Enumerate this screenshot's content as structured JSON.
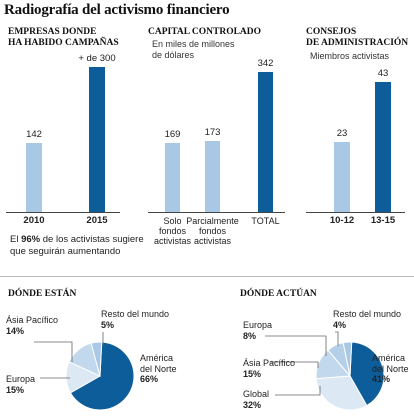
{
  "title": "Radiografía del activismo financiero",
  "panels": [
    {
      "title": "Empresas donde\nha habido campañas",
      "subtitle": ""
    },
    {
      "title": "Capital controlado",
      "subtitle": "En miles de millones\nde dólares"
    },
    {
      "title": "Consejos\nde administración",
      "subtitle": "Miembros activistas"
    }
  ],
  "note": {
    "prefix": "El ",
    "bold": "96%",
    "rest": " de los activistas sugiere que seguirán aumentando"
  },
  "chart_data": [
    {
      "type": "bar",
      "title": "Empresas donde ha habido campañas",
      "categories": [
        "2010",
        "2015"
      ],
      "values": [
        142,
        300
      ],
      "value_labels": [
        "142",
        "+ de 300"
      ],
      "colors": [
        "#a9c8e5",
        "#0d5d9a"
      ]
    },
    {
      "type": "bar",
      "title": "Capital controlado",
      "subtitle": "En miles de millones de dólares",
      "categories": [
        "Solo\nfondos\nactivistas",
        "Parcialmente\nfondos\nactivistas",
        "TOTAL"
      ],
      "values": [
        169,
        173,
        342
      ],
      "value_labels": [
        "169",
        "173",
        "342"
      ],
      "colors": [
        "#a9c8e5",
        "#a9c8e5",
        "#0d5d9a"
      ]
    },
    {
      "type": "bar",
      "title": "Consejos de administración",
      "subtitle": "Miembros activistas",
      "categories": [
        "10-12",
        "13-15"
      ],
      "values": [
        23,
        43
      ],
      "value_labels": [
        "23",
        "43"
      ],
      "colors": [
        "#a9c8e5",
        "#0d5d9a"
      ]
    },
    {
      "type": "pie",
      "title": "Dónde están",
      "slices": [
        {
          "name": "América\ndel Norte",
          "value": 66,
          "pct": "66%",
          "color": "#0d5d9a"
        },
        {
          "name": "Europa",
          "value": 15,
          "pct": "15%",
          "color": "#dce8f4"
        },
        {
          "name": "Ásia Pacífico",
          "value": 14,
          "pct": "14%",
          "color": "#c2d8ec"
        },
        {
          "name": "Resto del mundo",
          "value": 5,
          "pct": "5%",
          "color": "#a9c8e5"
        }
      ]
    },
    {
      "type": "pie",
      "title": "Dónde actúan",
      "slices": [
        {
          "name": "América\ndel Norte",
          "value": 41,
          "pct": "41%",
          "color": "#0d5d9a"
        },
        {
          "name": "Global",
          "value": 32,
          "pct": "32%",
          "color": "#dce8f4"
        },
        {
          "name": "Ásia Pacífico",
          "value": 15,
          "pct": "15%",
          "color": "#c2d8ec"
        },
        {
          "name": "Europa",
          "value": 8,
          "pct": "8%",
          "color": "#b4cfe8"
        },
        {
          "name": "Resto del mundo",
          "value": 4,
          "pct": "4%",
          "color": "#a9c8e5"
        }
      ]
    }
  ]
}
